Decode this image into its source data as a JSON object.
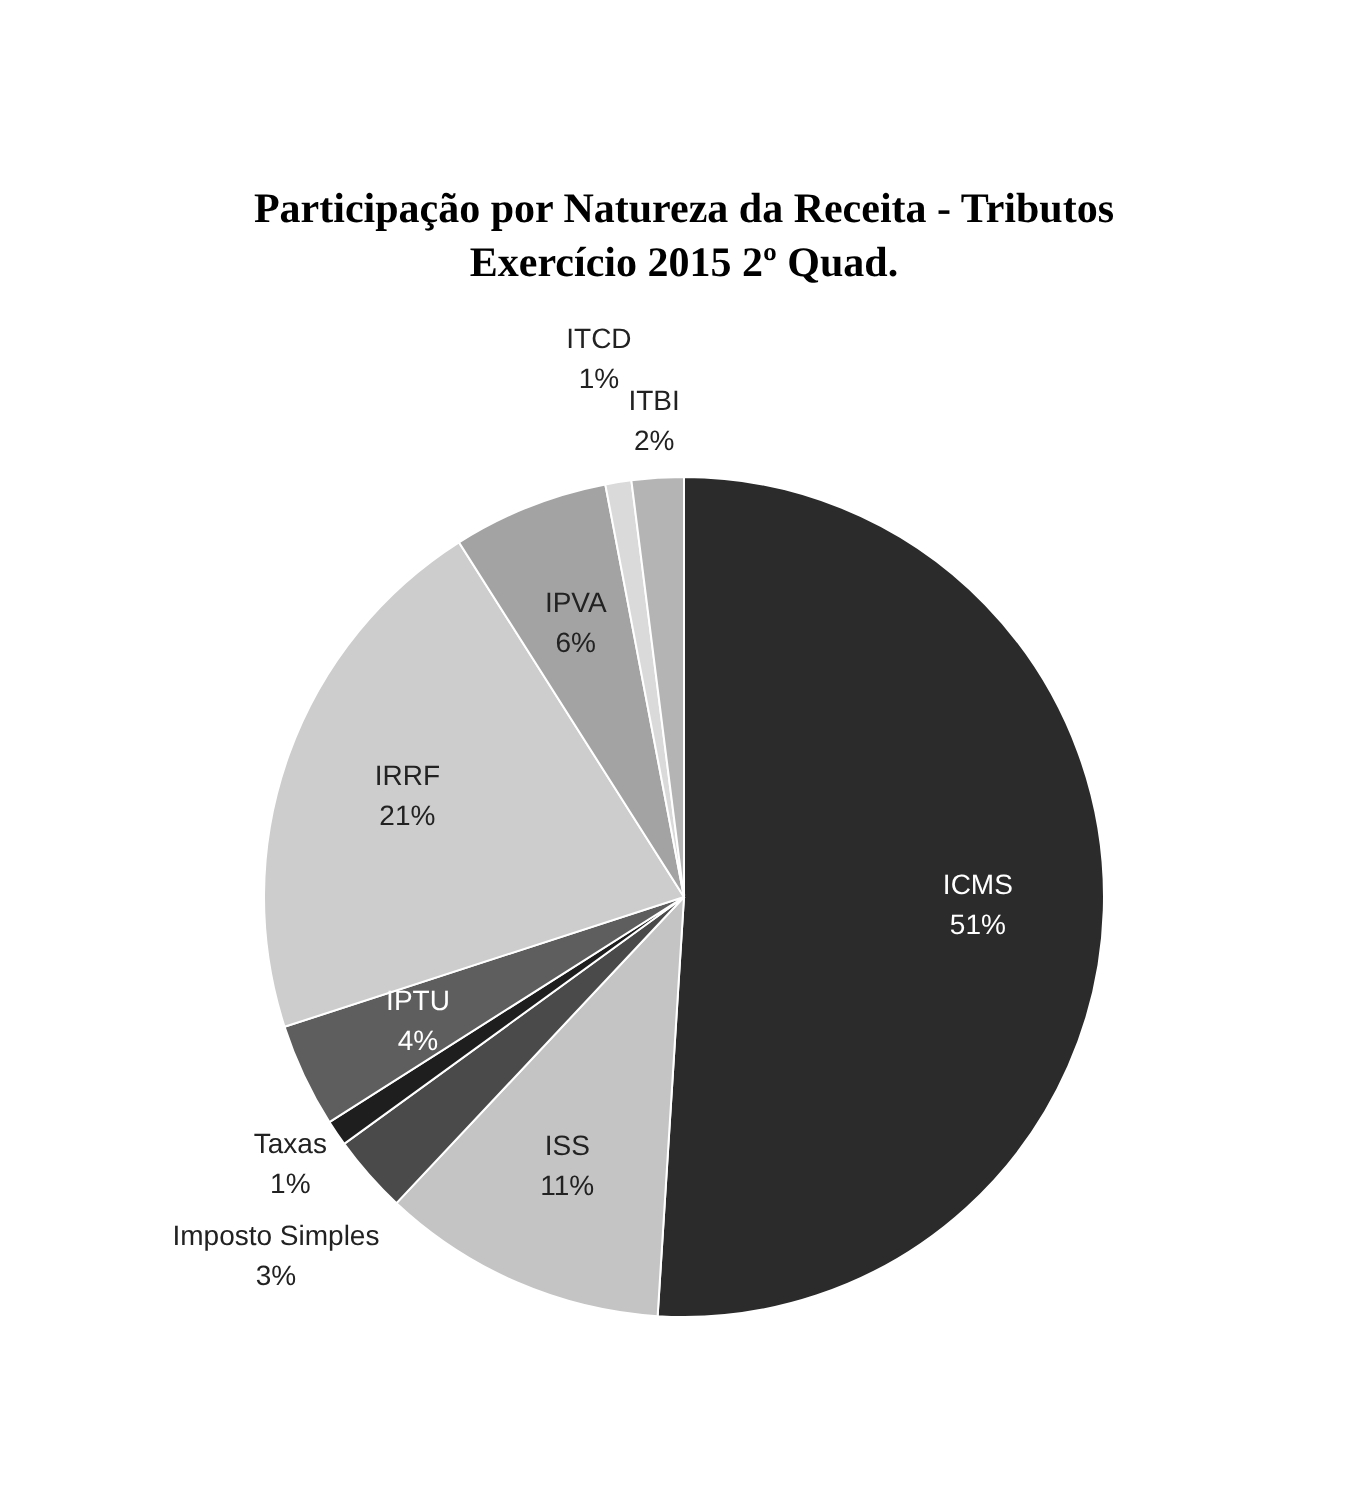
{
  "chart_data": {
    "type": "pie",
    "title": "Participação por Natureza da Receita - Tributos",
    "subtitle": "Exercício 2015 2º Quad.",
    "categories": [
      "ICMS",
      "ISS",
      "Imposto Simples",
      "Taxas",
      "IPTU",
      "IRRF",
      "IPVA",
      "ITCD",
      "ITBI"
    ],
    "values": [
      51,
      11,
      3,
      1,
      4,
      21,
      6,
      1,
      2
    ],
    "colors": [
      "#2b2b2b",
      "#c4c4c4",
      "#4a4a4a",
      "#1e1e1e",
      "#5e5e5e",
      "#cdcdcd",
      "#a3a3a3",
      "#dadada",
      "#b4b4b4"
    ],
    "value_labels": [
      "51%",
      "11%",
      "3%",
      "1%",
      "4%",
      "21%",
      "6%",
      "1%",
      "2%"
    ]
  }
}
